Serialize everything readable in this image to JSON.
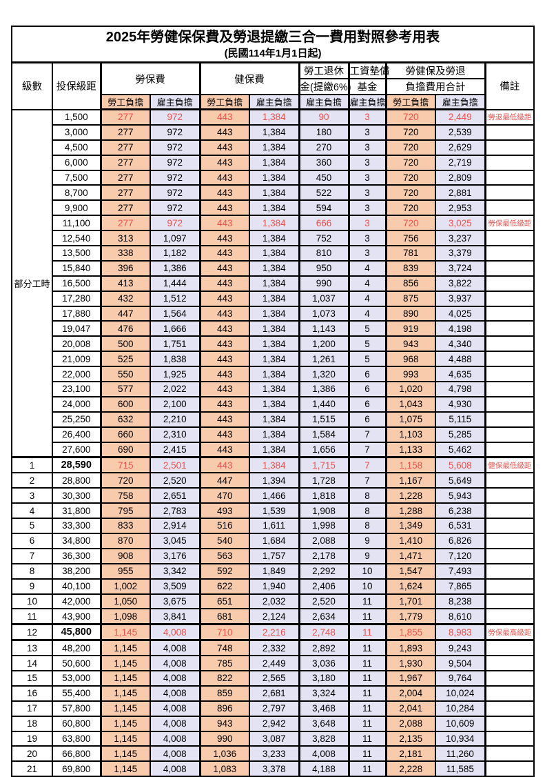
{
  "title": "2025年勞健保保費及勞退提繳三合一費用對照參考用表",
  "subtitle": "(民國114年1月1日起)",
  "colors": {
    "employee_share_bg": "#F8CBAD",
    "employer_share_bg": "#E4E3F3",
    "highlight_text": "#F0504B",
    "border": "#000000",
    "background": "#FFFFFF"
  },
  "header": {
    "level": "級數",
    "bracket": "投保級距",
    "labor_fee": "勞保費",
    "health_fee": "健保費",
    "pension_line1": "勞工退休",
    "pension_line2": "金(提繳6%)",
    "fund_line1": "工資墊償",
    "fund_line2": "基金",
    "total_line1": "勞健保及勞退",
    "total_line2": "負擔費用合計",
    "remark": "備註",
    "employee_share": "勞工負擔",
    "employer_share": "雇主負擔"
  },
  "section_label": "部分工時",
  "row_flags_legend": "r = red highlighted row, b = bold bracket value",
  "rows": [
    [
      "",
      "1,500",
      "277",
      "972",
      "443",
      "1,384",
      "90",
      "3",
      "720",
      "2,449",
      "勞退最低級距",
      "r"
    ],
    [
      "",
      "3,000",
      "277",
      "972",
      "443",
      "1,384",
      "180",
      "3",
      "720",
      "2,539",
      "",
      ""
    ],
    [
      "",
      "4,500",
      "277",
      "972",
      "443",
      "1,384",
      "270",
      "3",
      "720",
      "2,629",
      "",
      ""
    ],
    [
      "",
      "6,000",
      "277",
      "972",
      "443",
      "1,384",
      "360",
      "3",
      "720",
      "2,719",
      "",
      ""
    ],
    [
      "",
      "7,500",
      "277",
      "972",
      "443",
      "1,384",
      "450",
      "3",
      "720",
      "2,809",
      "",
      ""
    ],
    [
      "",
      "8,700",
      "277",
      "972",
      "443",
      "1,384",
      "522",
      "3",
      "720",
      "2,881",
      "",
      ""
    ],
    [
      "",
      "9,900",
      "277",
      "972",
      "443",
      "1,384",
      "594",
      "3",
      "720",
      "2,953",
      "",
      ""
    ],
    [
      "",
      "11,100",
      "277",
      "972",
      "443",
      "1,384",
      "666",
      "3",
      "720",
      "3,025",
      "勞保最低級距",
      "r"
    ],
    [
      "",
      "12,540",
      "313",
      "1,097",
      "443",
      "1,384",
      "752",
      "3",
      "756",
      "3,237",
      "",
      ""
    ],
    [
      "",
      "13,500",
      "338",
      "1,182",
      "443",
      "1,384",
      "810",
      "3",
      "781",
      "3,379",
      "",
      ""
    ],
    [
      "",
      "15,840",
      "396",
      "1,386",
      "443",
      "1,384",
      "950",
      "4",
      "839",
      "3,724",
      "",
      ""
    ],
    [
      "",
      "16,500",
      "413",
      "1,444",
      "443",
      "1,384",
      "990",
      "4",
      "856",
      "3,822",
      "",
      ""
    ],
    [
      "",
      "17,280",
      "432",
      "1,512",
      "443",
      "1,384",
      "1,037",
      "4",
      "875",
      "3,937",
      "",
      ""
    ],
    [
      "",
      "17,880",
      "447",
      "1,564",
      "443",
      "1,384",
      "1,073",
      "4",
      "890",
      "4,025",
      "",
      ""
    ],
    [
      "",
      "19,047",
      "476",
      "1,666",
      "443",
      "1,384",
      "1,143",
      "5",
      "919",
      "4,198",
      "",
      ""
    ],
    [
      "",
      "20,008",
      "500",
      "1,751",
      "443",
      "1,384",
      "1,200",
      "5",
      "943",
      "4,340",
      "",
      ""
    ],
    [
      "",
      "21,009",
      "525",
      "1,838",
      "443",
      "1,384",
      "1,261",
      "5",
      "968",
      "4,488",
      "",
      ""
    ],
    [
      "",
      "22,000",
      "550",
      "1,925",
      "443",
      "1,384",
      "1,320",
      "6",
      "993",
      "4,635",
      "",
      ""
    ],
    [
      "",
      "23,100",
      "577",
      "2,022",
      "443",
      "1,384",
      "1,386",
      "6",
      "1,020",
      "4,798",
      "",
      ""
    ],
    [
      "",
      "24,000",
      "600",
      "2,100",
      "443",
      "1,384",
      "1,440",
      "6",
      "1,043",
      "4,930",
      "",
      ""
    ],
    [
      "",
      "25,250",
      "632",
      "2,210",
      "443",
      "1,384",
      "1,515",
      "6",
      "1,075",
      "5,115",
      "",
      ""
    ],
    [
      "",
      "26,400",
      "660",
      "2,310",
      "443",
      "1,384",
      "1,584",
      "7",
      "1,103",
      "5,285",
      "",
      ""
    ],
    [
      "",
      "27,600",
      "690",
      "2,415",
      "443",
      "1,384",
      "1,656",
      "7",
      "1,133",
      "5,462",
      "",
      ""
    ],
    [
      "1",
      "28,590",
      "715",
      "2,501",
      "443",
      "1,384",
      "1,715",
      "7",
      "1,158",
      "5,608",
      "健保最低級距",
      "rb"
    ],
    [
      "2",
      "28,800",
      "720",
      "2,520",
      "447",
      "1,394",
      "1,728",
      "7",
      "1,167",
      "5,649",
      "",
      ""
    ],
    [
      "3",
      "30,300",
      "758",
      "2,651",
      "470",
      "1,466",
      "1,818",
      "8",
      "1,228",
      "5,943",
      "",
      ""
    ],
    [
      "4",
      "31,800",
      "795",
      "2,783",
      "493",
      "1,539",
      "1,908",
      "8",
      "1,288",
      "6,238",
      "",
      ""
    ],
    [
      "5",
      "33,300",
      "833",
      "2,914",
      "516",
      "1,611",
      "1,998",
      "8",
      "1,349",
      "6,531",
      "",
      ""
    ],
    [
      "6",
      "34,800",
      "870",
      "3,045",
      "540",
      "1,684",
      "2,088",
      "9",
      "1,410",
      "6,826",
      "",
      ""
    ],
    [
      "7",
      "36,300",
      "908",
      "3,176",
      "563",
      "1,757",
      "2,178",
      "9",
      "1,471",
      "7,120",
      "",
      ""
    ],
    [
      "8",
      "38,200",
      "955",
      "3,342",
      "592",
      "1,849",
      "2,292",
      "10",
      "1,547",
      "7,493",
      "",
      ""
    ],
    [
      "9",
      "40,100",
      "1,002",
      "3,509",
      "622",
      "1,940",
      "2,406",
      "10",
      "1,624",
      "7,865",
      "",
      ""
    ],
    [
      "10",
      "42,000",
      "1,050",
      "3,675",
      "651",
      "2,032",
      "2,520",
      "11",
      "1,701",
      "8,238",
      "",
      ""
    ],
    [
      "11",
      "43,900",
      "1,098",
      "3,841",
      "681",
      "2,124",
      "2,634",
      "11",
      "1,779",
      "8,610",
      "",
      ""
    ],
    [
      "12",
      "45,800",
      "1,145",
      "4,008",
      "710",
      "2,216",
      "2,748",
      "11",
      "1,855",
      "8,983",
      "勞保最高級距",
      "rb"
    ],
    [
      "13",
      "48,200",
      "1,145",
      "4,008",
      "748",
      "2,332",
      "2,892",
      "11",
      "1,893",
      "9,243",
      "",
      ""
    ],
    [
      "14",
      "50,600",
      "1,145",
      "4,008",
      "785",
      "2,449",
      "3,036",
      "11",
      "1,930",
      "9,504",
      "",
      ""
    ],
    [
      "15",
      "53,000",
      "1,145",
      "4,008",
      "822",
      "2,565",
      "3,180",
      "11",
      "1,967",
      "9,764",
      "",
      ""
    ],
    [
      "16",
      "55,400",
      "1,145",
      "4,008",
      "859",
      "2,681",
      "3,324",
      "11",
      "2,004",
      "10,024",
      "",
      ""
    ],
    [
      "17",
      "57,800",
      "1,145",
      "4,008",
      "896",
      "2,797",
      "3,468",
      "11",
      "2,041",
      "10,284",
      "",
      ""
    ],
    [
      "18",
      "60,800",
      "1,145",
      "4,008",
      "943",
      "2,942",
      "3,648",
      "11",
      "2,088",
      "10,609",
      "",
      ""
    ],
    [
      "19",
      "63,800",
      "1,145",
      "4,008",
      "990",
      "3,087",
      "3,828",
      "11",
      "2,135",
      "10,934",
      "",
      ""
    ],
    [
      "20",
      "66,800",
      "1,145",
      "4,008",
      "1,036",
      "3,233",
      "4,008",
      "11",
      "2,181",
      "11,260",
      "",
      ""
    ],
    [
      "21",
      "69,800",
      "1,145",
      "4,008",
      "1,083",
      "3,378",
      "4,188",
      "11",
      "2,228",
      "11,585",
      "",
      ""
    ]
  ]
}
